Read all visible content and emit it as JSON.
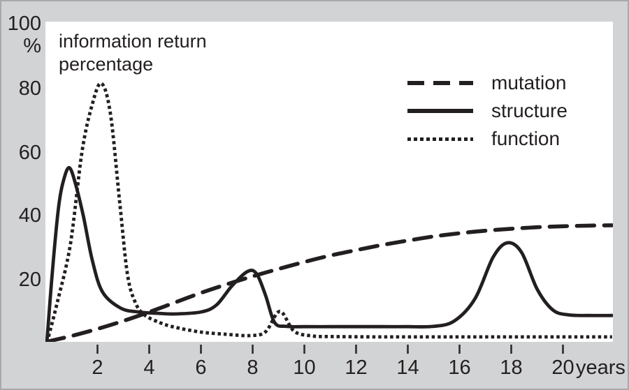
{
  "title": "information return percentage",
  "chart_data": {
    "type": "line",
    "title": "information return percentage",
    "xlabel": "years",
    "ylabel": "%",
    "x_unit": "years",
    "y_unit": "%",
    "x_ticks": [
      "2",
      "4",
      "6",
      "8",
      "10",
      "12",
      "14",
      "16",
      "18",
      "20"
    ],
    "y_ticks": [
      "100",
      "80",
      "60",
      "40",
      "20"
    ],
    "x_range": [
      0,
      21.9
    ],
    "ylim": [
      0,
      100
    ],
    "grid": false,
    "legend_position": "inside-top-right",
    "background_color": "#d1d3d4",
    "plot_color": "#ffffff",
    "line_color": "#231f20",
    "series": [
      {
        "name": "mutation",
        "line": "dashed",
        "points": [
          [
            0.05,
            0.5
          ],
          [
            1,
            2.3
          ],
          [
            2,
            4.5
          ],
          [
            3,
            7
          ],
          [
            4,
            9.8
          ],
          [
            5,
            12.8
          ],
          [
            6,
            15.8
          ],
          [
            7,
            18.5
          ],
          [
            8,
            21
          ],
          [
            9,
            23.3
          ],
          [
            10,
            25.5
          ],
          [
            11,
            27.5
          ],
          [
            12,
            29.2
          ],
          [
            13,
            30.8
          ],
          [
            14,
            32.2
          ],
          [
            15,
            33.5
          ],
          [
            16,
            34.5
          ],
          [
            17,
            35.3
          ],
          [
            18,
            35.9
          ],
          [
            19,
            36.4
          ],
          [
            20,
            36.7
          ],
          [
            21,
            36.9
          ],
          [
            21.9,
            37
          ]
        ]
      },
      {
        "name": "structure",
        "line": "solid",
        "points": [
          [
            0.05,
            1
          ],
          [
            0.25,
            22
          ],
          [
            0.5,
            43
          ],
          [
            0.72,
            52
          ],
          [
            0.92,
            55
          ],
          [
            1.15,
            50
          ],
          [
            1.45,
            40
          ],
          [
            1.8,
            26
          ],
          [
            2.2,
            16
          ],
          [
            2.9,
            11
          ],
          [
            3.6,
            9.8
          ],
          [
            4.3,
            9.4
          ],
          [
            5,
            9.2
          ],
          [
            6,
            9.8
          ],
          [
            6.6,
            12
          ],
          [
            7.2,
            18
          ],
          [
            7.8,
            22.5
          ],
          [
            8.15,
            21.8
          ],
          [
            8.5,
            15
          ],
          [
            8.85,
            6.5
          ],
          [
            9.3,
            5.3
          ],
          [
            10,
            5.2
          ],
          [
            11,
            5.2
          ],
          [
            12,
            5.2
          ],
          [
            13,
            5.2
          ],
          [
            14,
            5.2
          ],
          [
            15,
            5.3
          ],
          [
            15.8,
            7
          ],
          [
            16.6,
            14
          ],
          [
            17.3,
            27
          ],
          [
            17.85,
            31.5
          ],
          [
            18.4,
            28.5
          ],
          [
            19,
            17
          ],
          [
            19.6,
            10.5
          ],
          [
            20.2,
            8.9
          ],
          [
            21,
            8.7
          ],
          [
            21.9,
            8.7
          ]
        ]
      },
      {
        "name": "function",
        "line": "dotted",
        "points": [
          [
            0.05,
            0.3
          ],
          [
            0.45,
            13
          ],
          [
            0.95,
            31
          ],
          [
            1.4,
            60
          ],
          [
            1.8,
            75
          ],
          [
            2.15,
            81.5
          ],
          [
            2.5,
            72
          ],
          [
            2.85,
            45
          ],
          [
            3.15,
            22
          ],
          [
            3.45,
            13
          ],
          [
            3.8,
            9
          ],
          [
            4.4,
            6.5
          ],
          [
            5,
            5
          ],
          [
            6,
            3.5
          ],
          [
            7,
            2.8
          ],
          [
            7.9,
            2.4
          ],
          [
            8.5,
            3.6
          ],
          [
            9.05,
            10
          ],
          [
            9.6,
            3.8
          ],
          [
            10.3,
            2.3
          ],
          [
            11,
            2.1
          ],
          [
            13,
            2
          ],
          [
            15,
            2
          ],
          [
            17,
            2
          ],
          [
            19,
            2
          ],
          [
            21,
            2
          ],
          [
            21.9,
            2
          ]
        ]
      }
    ]
  }
}
